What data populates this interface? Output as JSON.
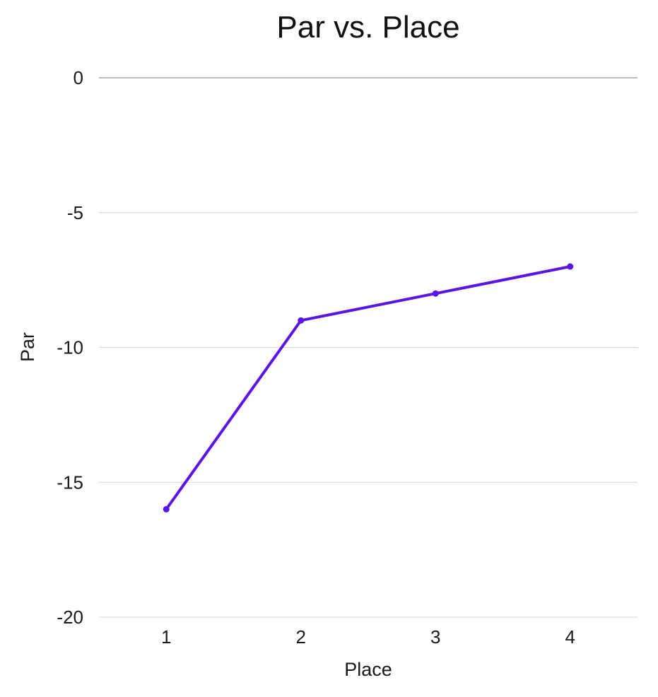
{
  "chart_data": {
    "type": "line",
    "title": "Par vs. Place",
    "xlabel": "Place",
    "ylabel": "Par",
    "categories": [
      "1",
      "2",
      "3",
      "4"
    ],
    "series": [
      {
        "values": [
          -16,
          -9,
          -8,
          -7
        ]
      }
    ],
    "ylim": [
      -20,
      0
    ],
    "yticks": [
      "0",
      "-5",
      "-10",
      "-15",
      "-20"
    ],
    "grid": true,
    "legend": "none",
    "colors": {
      "line": "#5b14e6",
      "grid": "#d4d4d4",
      "zero_line": "#a6a6a6"
    }
  }
}
